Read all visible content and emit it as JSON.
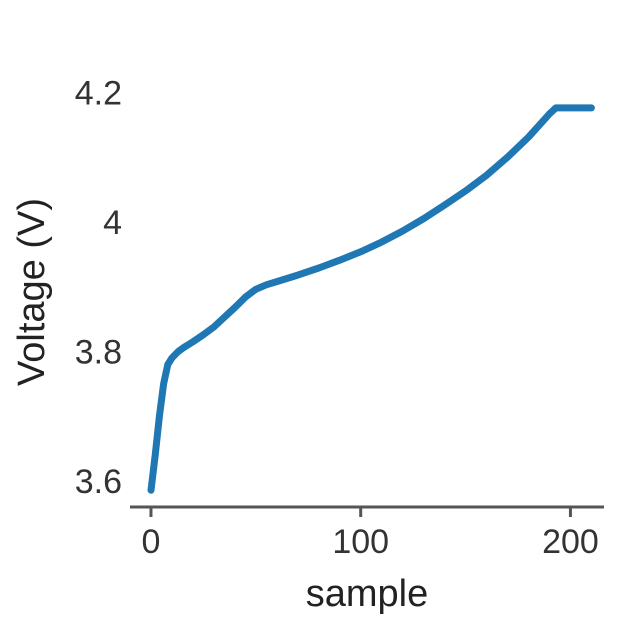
{
  "chart_data": {
    "type": "line",
    "title": "",
    "xlabel": "sample",
    "ylabel": "Voltage (V)",
    "xlim": [
      -10,
      216
    ],
    "ylim": [
      3.56,
      4.25
    ],
    "xticks": [
      0,
      100,
      200
    ],
    "xtick_labels": [
      "0",
      "100",
      "200"
    ],
    "yticks": [
      3.6,
      3.8,
      4.0,
      4.2
    ],
    "ytick_labels": [
      "3.6",
      "3.8",
      "4",
      "4.2"
    ],
    "grid": false,
    "color": "#1f77b4",
    "x": [
      0,
      2,
      4,
      6,
      8,
      10,
      13,
      16,
      20,
      25,
      30,
      35,
      40,
      45,
      50,
      55,
      60,
      70,
      80,
      90,
      100,
      110,
      120,
      130,
      140,
      150,
      160,
      170,
      180,
      190,
      193,
      200,
      205,
      210
    ],
    "y": [
      3.586,
      3.64,
      3.7,
      3.75,
      3.78,
      3.79,
      3.8,
      3.807,
      3.815,
      3.826,
      3.838,
      3.853,
      3.868,
      3.884,
      3.896,
      3.903,
      3.908,
      3.918,
      3.929,
      3.941,
      3.954,
      3.969,
      3.986,
      4.005,
      4.026,
      4.048,
      4.072,
      4.1,
      4.131,
      4.167,
      4.176,
      4.176,
      4.176,
      4.176
    ]
  }
}
